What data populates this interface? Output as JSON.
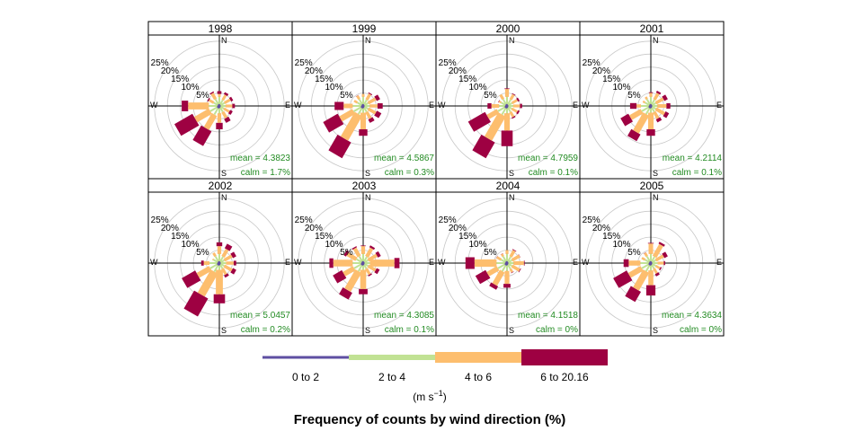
{
  "chart_data": {
    "type": "windrose",
    "title": "Frequency of counts by wind direction (%)",
    "units_label": "(m s",
    "units_exponent": "−1",
    "radial_labels": [
      "25%",
      "20%",
      "15%",
      "10%",
      "5%"
    ],
    "radial_values": [
      25,
      20,
      15,
      10,
      5
    ],
    "rmax": 27,
    "direction_labels": [
      "N",
      "E",
      "S",
      "W"
    ],
    "directions_deg": [
      0,
      30,
      60,
      90,
      120,
      150,
      180,
      210,
      240,
      270,
      300,
      330
    ],
    "speed_bins": [
      {
        "label": "0 to 2",
        "color": "#5E4FA2"
      },
      {
        "label": "2 to 4",
        "color": "#C1E294"
      },
      {
        "label": "4 to 6",
        "color": "#FDBE6E"
      },
      {
        "label": "6 to 20.16",
        "color": "#9E0142"
      }
    ],
    "panels": [
      {
        "year": "1998",
        "mean": "mean = 4.3823",
        "calm": "calm = 1.7%",
        "freq": [
          [
            0.8,
            3.5,
            4.6,
            5.7
          ],
          [
            0.6,
            2.6,
            4.8,
            5.7
          ],
          [
            0.5,
            2.3,
            4.8,
            5.7
          ],
          [
            0.5,
            2.4,
            5.0,
            6.0
          ],
          [
            0.4,
            2.0,
            4.4,
            5.5
          ],
          [
            0.6,
            2.6,
            5.3,
            7.0
          ],
          [
            0.8,
            2.8,
            6.5,
            9.0
          ],
          [
            1.0,
            3.8,
            10.0,
            16.5
          ],
          [
            1.0,
            4.0,
            10.5,
            18.5
          ],
          [
            0.8,
            4.0,
            12.0,
            14.5
          ],
          [
            0.6,
            2.5,
            4.5,
            5.0
          ],
          [
            0.7,
            3.0,
            5.5,
            6.0
          ]
        ]
      },
      {
        "year": "1999",
        "mean": "mean = 4.5867",
        "calm": "calm = 0.3%",
        "freq": [
          [
            0.8,
            3.5,
            4.6,
            4.6
          ],
          [
            0.6,
            2.7,
            5.2,
            5.6
          ],
          [
            0.5,
            2.2,
            5.5,
            7.0
          ],
          [
            0.5,
            2.5,
            5.5,
            7.5
          ],
          [
            0.4,
            2.2,
            5.5,
            7.5
          ],
          [
            0.6,
            2.6,
            5.5,
            7.0
          ],
          [
            0.8,
            2.6,
            9.0,
            11.5
          ],
          [
            1.0,
            3.6,
            14.5,
            21.5
          ],
          [
            1.0,
            4.2,
            10.0,
            16.5
          ],
          [
            0.8,
            4.0,
            7.5,
            11.0
          ],
          [
            0.6,
            2.6,
            4.0,
            4.0
          ],
          [
            0.7,
            3.0,
            4.5,
            4.6
          ]
        ]
      },
      {
        "year": "2000",
        "mean": "mean = 4.7959",
        "calm": "calm = 0.1%",
        "freq": [
          [
            0.8,
            3.5,
            6.5,
            6.8
          ],
          [
            0.6,
            2.8,
            5.0,
            5.3
          ],
          [
            0.5,
            2.2,
            4.5,
            5.2
          ],
          [
            0.5,
            2.4,
            5.0,
            5.8
          ],
          [
            0.4,
            2.1,
            4.5,
            5.2
          ],
          [
            0.6,
            2.6,
            4.8,
            5.3
          ],
          [
            0.8,
            2.8,
            9.5,
            15.5
          ],
          [
            1.0,
            3.8,
            14.5,
            21.5
          ],
          [
            1.0,
            4.0,
            8.5,
            16.0
          ],
          [
            0.8,
            3.0,
            6.0,
            7.5
          ],
          [
            0.6,
            2.6,
            3.5,
            3.7
          ],
          [
            0.7,
            3.0,
            5.0,
            5.0
          ]
        ]
      },
      {
        "year": "2001",
        "mean": "mean = 4.2114",
        "calm": "calm = 0.1%",
        "freq": [
          [
            0.8,
            3.5,
            5.0,
            5.3
          ],
          [
            0.6,
            2.8,
            5.5,
            6.3
          ],
          [
            0.5,
            2.2,
            5.5,
            7.0
          ],
          [
            0.5,
            2.5,
            6.0,
            7.5
          ],
          [
            0.4,
            2.2,
            6.0,
            7.5
          ],
          [
            0.6,
            2.6,
            5.5,
            6.8
          ],
          [
            0.8,
            2.6,
            9.0,
            11.5
          ],
          [
            1.0,
            3.6,
            11.5,
            14.5
          ],
          [
            1.0,
            4.0,
            9.0,
            12.5
          ],
          [
            0.8,
            3.8,
            5.5,
            8.0
          ],
          [
            0.6,
            2.6,
            3.5,
            3.5
          ],
          [
            0.7,
            3.0,
            4.0,
            4.0
          ]
        ]
      },
      {
        "year": "2002",
        "mean": "mean = 5.0457",
        "calm": "calm = 0.2%",
        "freq": [
          [
            0.8,
            3.5,
            6.5,
            8.0
          ],
          [
            0.6,
            2.8,
            6.0,
            8.0
          ],
          [
            0.5,
            2.2,
            5.5,
            7.0
          ],
          [
            0.5,
            2.6,
            5.5,
            6.5
          ],
          [
            0.4,
            2.2,
            5.5,
            7.0
          ],
          [
            0.6,
            2.4,
            5.0,
            6.0
          ],
          [
            0.8,
            2.6,
            12.0,
            15.5
          ],
          [
            1.0,
            3.8,
            14.0,
            22.0
          ],
          [
            1.0,
            4.0,
            9.5,
            15.5
          ],
          [
            0.8,
            3.8,
            6.0,
            7.0
          ],
          [
            0.6,
            2.6,
            3.0,
            3.0
          ],
          [
            0.7,
            3.0,
            4.5,
            4.5
          ]
        ]
      },
      {
        "year": "2003",
        "mean": "mean = 4.3085",
        "calm": "calm = 0.1%",
        "freq": [
          [
            0.8,
            3.5,
            6.5,
            6.8
          ],
          [
            0.6,
            2.8,
            6.5,
            7.3
          ],
          [
            0.5,
            2.2,
            6.0,
            7.3
          ],
          [
            0.5,
            2.6,
            12.0,
            14.0
          ],
          [
            0.4,
            2.2,
            5.5,
            6.8
          ],
          [
            0.6,
            2.4,
            5.0,
            5.5
          ],
          [
            0.8,
            2.6,
            10.0,
            12.0
          ],
          [
            1.0,
            3.6,
            12.0,
            15.0
          ],
          [
            1.0,
            4.0,
            8.5,
            12.5
          ],
          [
            0.8,
            4.0,
            11.5,
            13.0
          ],
          [
            0.6,
            3.0,
            7.0,
            8.0
          ],
          [
            0.7,
            3.0,
            6.5,
            7.0
          ]
        ]
      },
      {
        "year": "2004",
        "mean": "mean = 4.1518",
        "calm": "calm = 0%",
        "freq": [
          [
            0.8,
            3.5,
            5.0,
            5.0
          ],
          [
            0.6,
            2.8,
            5.5,
            5.8
          ],
          [
            0.5,
            2.2,
            5.5,
            5.6
          ],
          [
            0.5,
            2.5,
            6.5,
            6.8
          ],
          [
            0.4,
            2.2,
            5.5,
            5.8
          ],
          [
            0.6,
            2.6,
            4.0,
            4.2
          ],
          [
            0.8,
            3.0,
            8.0,
            9.5
          ],
          [
            1.0,
            3.6,
            9.5,
            11.0
          ],
          [
            1.0,
            4.0,
            8.5,
            13.0
          ],
          [
            0.8,
            4.0,
            12.5,
            16.0
          ],
          [
            0.6,
            2.6,
            4.5,
            4.6
          ],
          [
            0.7,
            3.0,
            4.0,
            4.1
          ]
        ]
      },
      {
        "year": "2005",
        "mean": "mean = 4.3634",
        "calm": "calm = 0%",
        "freq": [
          [
            0.8,
            3.5,
            7.5,
            7.8
          ],
          [
            0.6,
            2.8,
            8.0,
            8.8
          ],
          [
            0.5,
            2.2,
            5.5,
            7.0
          ],
          [
            0.5,
            2.6,
            5.0,
            5.5
          ],
          [
            0.4,
            2.2,
            4.0,
            4.5
          ],
          [
            0.6,
            2.4,
            4.5,
            5.5
          ],
          [
            0.8,
            2.8,
            8.5,
            12.5
          ],
          [
            1.0,
            3.6,
            11.5,
            16.0
          ],
          [
            1.0,
            4.0,
            9.5,
            15.5
          ],
          [
            0.8,
            4.0,
            8.5,
            10.5
          ],
          [
            0.6,
            2.6,
            4.0,
            4.0
          ],
          [
            0.7,
            3.0,
            4.5,
            4.6
          ]
        ]
      }
    ]
  }
}
